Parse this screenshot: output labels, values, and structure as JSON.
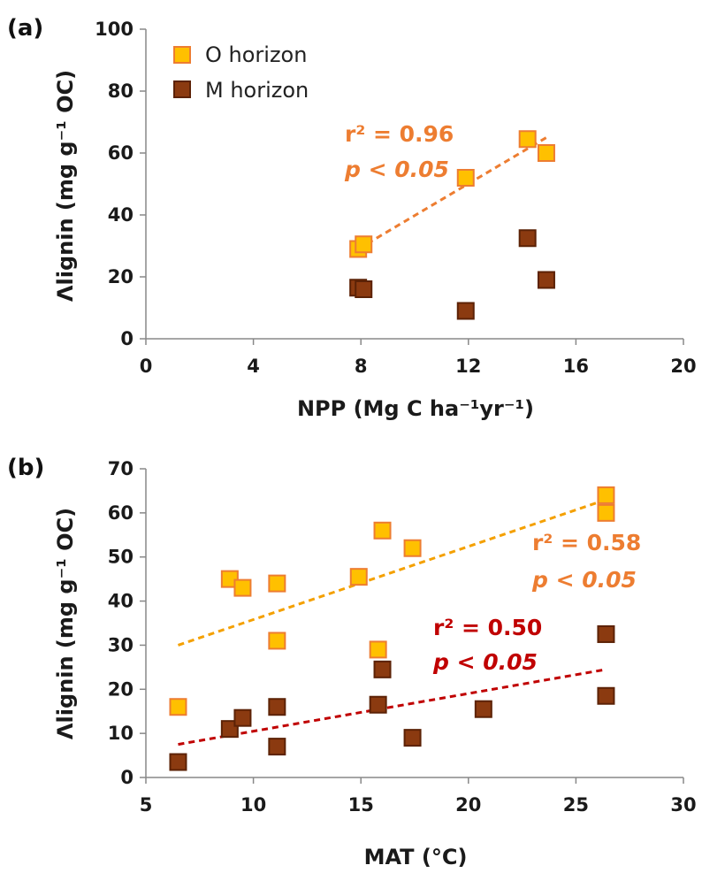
{
  "chart_data": [
    {
      "panel": "(a)",
      "type": "scatter",
      "xlabel": "NPP (Mg C ha⁻¹yr⁻¹)",
      "ylabel": "Λlignin (mg g⁻¹ OC)",
      "xlim": [
        0,
        20
      ],
      "ylim": [
        0,
        100
      ],
      "xticks": [
        0,
        4,
        8,
        12,
        16,
        20
      ],
      "yticks": [
        0,
        20,
        40,
        60,
        80,
        100
      ],
      "legend_position": "top-left",
      "grid": false,
      "series": [
        {
          "name": "O horizon",
          "color": "#FFC000",
          "edge": "#ED7D31",
          "points": [
            [
              7.9,
              29
            ],
            [
              8.1,
              30.5
            ],
            [
              11.9,
              52
            ],
            [
              14.2,
              64.5
            ],
            [
              14.9,
              60
            ]
          ],
          "trend": {
            "x": [
              7.9,
              14.9
            ],
            "y": [
              29,
              65
            ],
            "color": "#ED7D31"
          },
          "stats": {
            "r2": "r² = 0.96",
            "p": "p < 0.05",
            "color": "#ED7D31"
          }
        },
        {
          "name": "M horizon",
          "color": "#8B3A10",
          "edge": "#5C2206",
          "points": [
            [
              7.9,
              16.5
            ],
            [
              8.1,
              16
            ],
            [
              11.9,
              9
            ],
            [
              14.2,
              32.5
            ],
            [
              14.9,
              19
            ]
          ]
        }
      ]
    },
    {
      "panel": "(b)",
      "type": "scatter",
      "xlabel": "MAT (°C)",
      "ylabel": "Λlignin (mg g⁻¹ OC)",
      "xlim": [
        5,
        30
      ],
      "ylim": [
        0,
        70
      ],
      "xticks": [
        5,
        10,
        15,
        20,
        25,
        30
      ],
      "yticks": [
        0,
        10,
        20,
        30,
        40,
        50,
        60,
        70
      ],
      "grid": false,
      "series": [
        {
          "name": "O horizon",
          "color": "#FFC000",
          "edge": "#ED7D31",
          "points": [
            [
              6.5,
              16
            ],
            [
              8.9,
              45
            ],
            [
              9.5,
              43
            ],
            [
              11.1,
              44
            ],
            [
              11.1,
              31
            ],
            [
              14.9,
              45.5
            ],
            [
              15.8,
              29
            ],
            [
              16,
              56
            ],
            [
              17.4,
              52
            ],
            [
              26.4,
              64
            ],
            [
              26.4,
              60
            ]
          ],
          "trend": {
            "x": [
              6.5,
              26.4
            ],
            "y": [
              30,
              63
            ],
            "color": "#F4A000"
          },
          "stats": {
            "r2": "r² = 0.58",
            "p": "p < 0.05",
            "color": "#ED7D31"
          }
        },
        {
          "name": "M horizon",
          "color": "#8B3A10",
          "edge": "#5C2206",
          "points": [
            [
              6.5,
              3.5
            ],
            [
              8.9,
              11
            ],
            [
              9.5,
              13.5
            ],
            [
              11.1,
              16
            ],
            [
              11.1,
              7
            ],
            [
              15.8,
              16.5
            ],
            [
              16,
              24.5
            ],
            [
              17.4,
              9
            ],
            [
              20.7,
              15.5
            ],
            [
              26.4,
              32.5
            ],
            [
              26.4,
              18.5
            ]
          ],
          "trend": {
            "x": [
              6.5,
              26.4
            ],
            "y": [
              7.5,
              24.5
            ],
            "color": "#C00000"
          },
          "stats": {
            "r2": "r² = 0.50",
            "p": "p < 0.05",
            "color": "#C00000"
          }
        }
      ]
    }
  ]
}
